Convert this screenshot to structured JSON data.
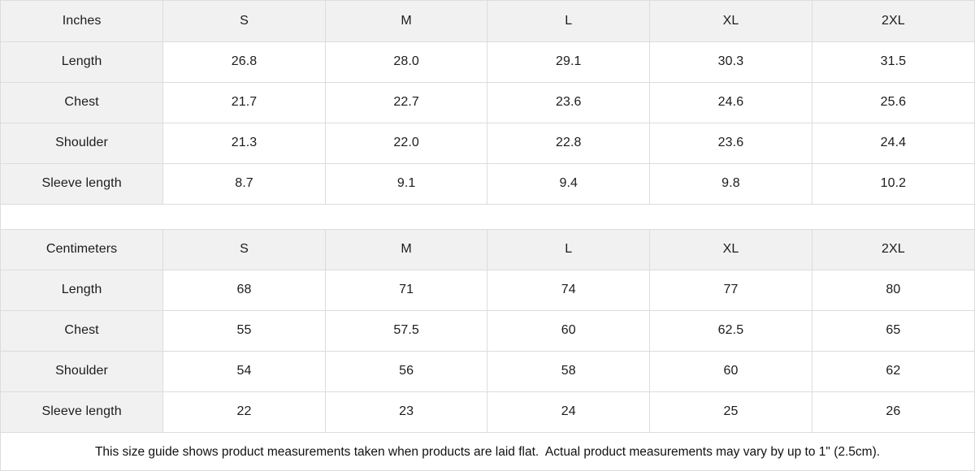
{
  "colors": {
    "header_bg": "#f1f1f1",
    "border": "#dcdcdc",
    "text": "#1c1c1c"
  },
  "tables": [
    {
      "unit_label": "Inches",
      "columns": [
        "S",
        "M",
        "L",
        "XL",
        "2XL"
      ],
      "rows": [
        {
          "label": "Length",
          "values": [
            "26.8",
            "28.0",
            "29.1",
            "30.3",
            "31.5"
          ]
        },
        {
          "label": "Chest",
          "values": [
            "21.7",
            "22.7",
            "23.6",
            "24.6",
            "25.6"
          ]
        },
        {
          "label": "Shoulder",
          "values": [
            "21.3",
            "22.0",
            "22.8",
            "23.6",
            "24.4"
          ]
        },
        {
          "label": "Sleeve length",
          "values": [
            "8.7",
            "9.1",
            "9.4",
            "9.8",
            "10.2"
          ]
        }
      ]
    },
    {
      "unit_label": "Centimeters",
      "columns": [
        "S",
        "M",
        "L",
        "XL",
        "2XL"
      ],
      "rows": [
        {
          "label": "Length",
          "values": [
            "68",
            "71",
            "74",
            "77",
            "80"
          ]
        },
        {
          "label": "Chest",
          "values": [
            "55",
            "57.5",
            "60",
            "62.5",
            "65"
          ]
        },
        {
          "label": "Shoulder",
          "values": [
            "54",
            "56",
            "58",
            "60",
            "62"
          ]
        },
        {
          "label": "Sleeve length",
          "values": [
            "22",
            "23",
            "24",
            "25",
            "26"
          ]
        }
      ]
    }
  ],
  "footer": {
    "note": "This size guide shows product measurements taken when products are laid flat.  Actual product measurements may vary by up to 1\" (2.5cm)."
  }
}
